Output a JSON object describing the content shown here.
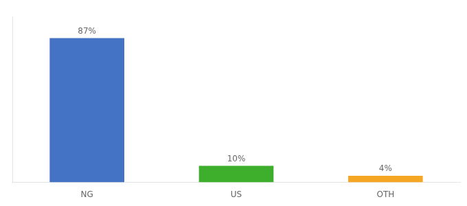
{
  "chart_data": {
    "type": "bar",
    "categories": [
      "NG",
      "US",
      "OTH"
    ],
    "values": [
      87,
      10,
      4
    ],
    "value_labels": [
      "87%",
      "10%",
      "4%"
    ],
    "colors": [
      "#4472C4",
      "#3EAF2C",
      "#F5A623"
    ],
    "ylim": [
      0,
      100
    ],
    "grid": false,
    "data_labels": true,
    "tick_labels": "x"
  }
}
